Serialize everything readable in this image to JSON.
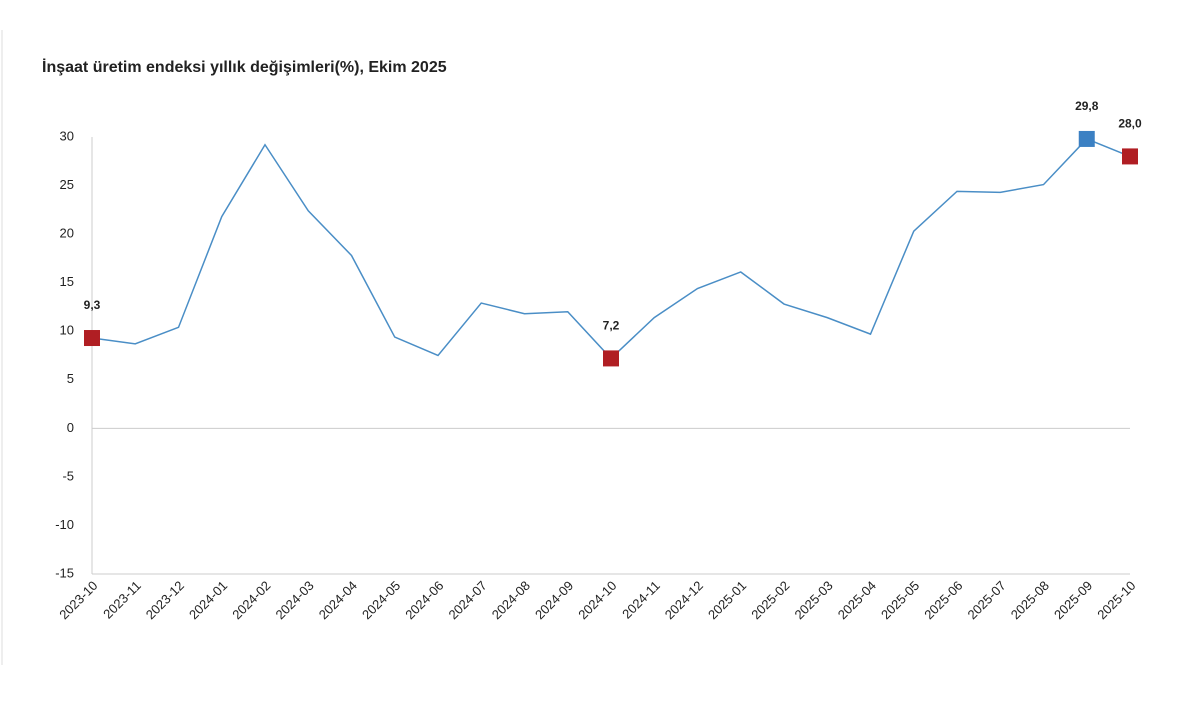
{
  "chart_data": {
    "type": "line",
    "title": "İnşaat üretim endeksi yıllık değişimleri(%), Ekim 2025",
    "categories": [
      "2023-10",
      "2023-11",
      "2023-12",
      "2024-01",
      "2024-02",
      "2024-03",
      "2024-04",
      "2024-05",
      "2024-06",
      "2024-07",
      "2024-08",
      "2024-09",
      "2024-10",
      "2024-11",
      "2024-12",
      "2025-01",
      "2025-02",
      "2025-03",
      "2025-04",
      "2025-05",
      "2025-06",
      "2025-07",
      "2025-08",
      "2025-09",
      "2025-10"
    ],
    "series": [
      {
        "color": "#4a8ec6",
        "values": [
          9.3,
          8.7,
          10.4,
          21.8,
          29.2,
          22.4,
          17.8,
          9.4,
          7.5,
          12.9,
          11.8,
          12.0,
          7.2,
          11.4,
          14.4,
          16.1,
          12.8,
          11.4,
          9.7,
          20.3,
          24.4,
          24.3,
          25.1,
          29.8,
          28.0
        ],
        "value_labels": [
          "9,3",
          null,
          null,
          null,
          null,
          null,
          null,
          null,
          null,
          null,
          null,
          null,
          "7,2",
          null,
          null,
          null,
          null,
          null,
          null,
          null,
          null,
          null,
          null,
          "29,8",
          "28,0"
        ],
        "marker_colors": [
          "#b01e23",
          null,
          null,
          null,
          null,
          null,
          null,
          null,
          null,
          null,
          null,
          null,
          "#b01e23",
          null,
          null,
          null,
          null,
          null,
          null,
          null,
          null,
          null,
          null,
          "#3b80c3",
          "#b01e23"
        ]
      }
    ],
    "ylim": [
      -15,
      30
    ],
    "yticks": [
      -15,
      -10,
      -5,
      0,
      5,
      10,
      15,
      20,
      25,
      30
    ],
    "grid": false
  }
}
